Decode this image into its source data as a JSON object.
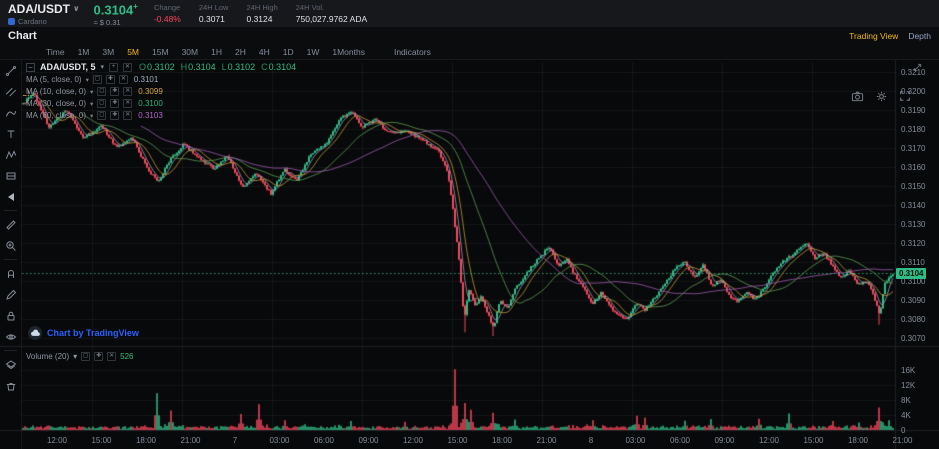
{
  "header": {
    "pair": "ADA/USDT",
    "pair_caret": "∨",
    "network": "Cardano",
    "price": "0.3104",
    "price_suffix": "+",
    "price_usd": "≈ $ 0.31",
    "stats": [
      {
        "label": "Change",
        "value": "-0.48%",
        "color": "#f5475d"
      },
      {
        "label": "24H Low",
        "value": "0.3071",
        "color": "#dfe2e8"
      },
      {
        "label": "24H High",
        "value": "0.3124",
        "color": "#dfe2e8"
      },
      {
        "label": "24H Vol.",
        "value": "750,027.9762 ADA",
        "color": "#dfe2e8"
      }
    ]
  },
  "chart_header": {
    "title": "Chart",
    "tabs": [
      {
        "label": "Trading View",
        "active": true
      },
      {
        "label": "Depth",
        "active": false
      }
    ]
  },
  "toolbar": {
    "crosshair_icon": "crosshair-icon",
    "intervals": [
      {
        "label": "Time"
      },
      {
        "label": "1M"
      },
      {
        "label": "3M"
      },
      {
        "label": "5M",
        "active": true
      },
      {
        "label": "15M"
      },
      {
        "label": "30M"
      },
      {
        "label": "1H"
      },
      {
        "label": "2H"
      },
      {
        "label": "4H"
      },
      {
        "label": "1D"
      },
      {
        "label": "1W"
      },
      {
        "label": "1Months"
      },
      {
        "label": "Indicators",
        "indicators": true
      }
    ],
    "action_icons": [
      "camera-icon",
      "settings-gear-icon",
      "fullscreen-icon"
    ]
  },
  "sidebar": {
    "tools": [
      "trend-line",
      "parallel-channel",
      "curve",
      "text-tool",
      "xabcd-pattern",
      "long-position",
      "collapse-arrow",
      "|",
      "ruler",
      "zoom-in",
      "|",
      "magnet",
      "brush",
      "lock",
      "eye",
      "|",
      "object-tree",
      "remove-drawings"
    ]
  },
  "legend": {
    "symbol": "ADA/USDT, 5",
    "caret": "▾",
    "icon_boxes": [
      "legend-add-icon",
      "legend-compare-icon"
    ],
    "ohlc": [
      {
        "k": "O",
        "v": "0.3102"
      },
      {
        "k": "H",
        "v": "0.3104"
      },
      {
        "k": "L",
        "v": "0.3102"
      },
      {
        "k": "C",
        "v": "0.3104"
      }
    ],
    "ohlc_color": "#2ebd85"
  },
  "indicators_legend": [
    {
      "label": "MA (5, close, 0)",
      "value": "0.3101",
      "color": "#9fb0c6",
      "line": "#93a0b4"
    },
    {
      "label": "MA (10, close, 0)",
      "value": "0.3099",
      "color": "#d4ab45",
      "line": "#bf9a3c"
    },
    {
      "label": "MA (30, close, 0)",
      "value": "0.3100",
      "color": "#33b577",
      "line": "#5c9a55"
    },
    {
      "label": "MA (60, close, 0)",
      "value": "0.3103",
      "color": "#b565cc",
      "line": "#9c59ae"
    }
  ],
  "volume_legend": {
    "label": "Volume (20)",
    "caret": "▾",
    "value": "526",
    "color": "#2ebd85"
  },
  "attribution": {
    "text": "Chart by TradingView"
  },
  "chart_data": {
    "type": "candlestick_with_volume",
    "symbol": "ADA/USDT",
    "interval": "5m",
    "ohlc_legend": {
      "open": 0.3102,
      "high": 0.3104,
      "low": 0.3102,
      "close": 0.3104
    },
    "last_price": 0.3104,
    "last_price_label": "0.3104",
    "day_low": 0.3071,
    "day_high": 0.3124,
    "price_axis_ticks": [
      "0.3210",
      "0.3200",
      "0.3190",
      "0.3180",
      "0.3170",
      "0.3160",
      "0.3150",
      "0.3140",
      "0.3130",
      "0.3120",
      "0.3110",
      "0.3100",
      "0.3090",
      "0.3080",
      "0.3070"
    ],
    "volume_axis_ticks": [
      "16K",
      "12K",
      "8K",
      "4K",
      "0"
    ],
    "time_axis_labels": [
      "12:00",
      "15:00",
      "18:00",
      "21:00",
      "7",
      "03:00",
      "06:00",
      "09:00",
      "12:00",
      "15:00",
      "18:00",
      "21:00",
      "8",
      "03:00",
      "06:00",
      "09:00",
      "12:00",
      "15:00",
      "18:00",
      "21:00"
    ],
    "grid": true,
    "colors": {
      "up": "#2ebd85",
      "down": "#f5475d"
    },
    "moving_average_periods": [
      5,
      10,
      30,
      60
    ],
    "price_keypoints": [
      [
        0.0,
        0.3193
      ],
      [
        0.012,
        0.3199
      ],
      [
        0.03,
        0.3181
      ],
      [
        0.05,
        0.319
      ],
      [
        0.07,
        0.3175
      ],
      [
        0.09,
        0.3182
      ],
      [
        0.108,
        0.317
      ],
      [
        0.125,
        0.3176
      ],
      [
        0.143,
        0.3159
      ],
      [
        0.155,
        0.3152
      ],
      [
        0.168,
        0.3163
      ],
      [
        0.185,
        0.3172
      ],
      [
        0.2,
        0.3165
      ],
      [
        0.22,
        0.3159
      ],
      [
        0.235,
        0.3166
      ],
      [
        0.252,
        0.3149
      ],
      [
        0.268,
        0.3157
      ],
      [
        0.285,
        0.3146
      ],
      [
        0.3,
        0.3159
      ],
      [
        0.315,
        0.3153
      ],
      [
        0.33,
        0.3166
      ],
      [
        0.35,
        0.3173
      ],
      [
        0.365,
        0.3186
      ],
      [
        0.378,
        0.3189
      ],
      [
        0.39,
        0.3181
      ],
      [
        0.405,
        0.3185
      ],
      [
        0.42,
        0.3178
      ],
      [
        0.44,
        0.3179
      ],
      [
        0.46,
        0.3174
      ],
      [
        0.478,
        0.3168
      ],
      [
        0.488,
        0.3158
      ],
      [
        0.495,
        0.3135
      ],
      [
        0.502,
        0.3108
      ],
      [
        0.507,
        0.308
      ],
      [
        0.513,
        0.3096
      ],
      [
        0.52,
        0.3086
      ],
      [
        0.527,
        0.3092
      ],
      [
        0.535,
        0.3082
      ],
      [
        0.541,
        0.3075
      ],
      [
        0.548,
        0.309
      ],
      [
        0.557,
        0.3085
      ],
      [
        0.565,
        0.3096
      ],
      [
        0.575,
        0.3101
      ],
      [
        0.585,
        0.3108
      ],
      [
        0.595,
        0.3113
      ],
      [
        0.605,
        0.3118
      ],
      [
        0.615,
        0.3108
      ],
      [
        0.625,
        0.3112
      ],
      [
        0.633,
        0.3104
      ],
      [
        0.645,
        0.3096
      ],
      [
        0.655,
        0.3088
      ],
      [
        0.665,
        0.3094
      ],
      [
        0.675,
        0.3086
      ],
      [
        0.685,
        0.3082
      ],
      [
        0.695,
        0.308
      ],
      [
        0.705,
        0.3088
      ],
      [
        0.715,
        0.3085
      ],
      [
        0.728,
        0.3092
      ],
      [
        0.74,
        0.31
      ],
      [
        0.75,
        0.3107
      ],
      [
        0.76,
        0.311
      ],
      [
        0.772,
        0.3102
      ],
      [
        0.782,
        0.3109
      ],
      [
        0.792,
        0.3097
      ],
      [
        0.802,
        0.3101
      ],
      [
        0.812,
        0.3092
      ],
      [
        0.822,
        0.3089
      ],
      [
        0.832,
        0.3094
      ],
      [
        0.842,
        0.309
      ],
      [
        0.852,
        0.3096
      ],
      [
        0.862,
        0.3104
      ],
      [
        0.872,
        0.311
      ],
      [
        0.882,
        0.3113
      ],
      [
        0.892,
        0.3117
      ],
      [
        0.9,
        0.312
      ],
      [
        0.91,
        0.3112
      ],
      [
        0.92,
        0.3115
      ],
      [
        0.93,
        0.3108
      ],
      [
        0.94,
        0.3102
      ],
      [
        0.95,
        0.3105
      ],
      [
        0.96,
        0.3098
      ],
      [
        0.97,
        0.31
      ],
      [
        0.978,
        0.3092
      ],
      [
        0.985,
        0.3082
      ],
      [
        0.99,
        0.3098
      ],
      [
        0.995,
        0.3101
      ],
      [
        1.0,
        0.3104
      ]
    ],
    "wick_lows": [
      [
        0.507,
        0.3073
      ],
      [
        0.541,
        0.3071
      ],
      [
        0.985,
        0.3077
      ]
    ],
    "volume_spikes": [
      [
        0.155,
        9800,
        "up"
      ],
      [
        0.17,
        5200,
        "down"
      ],
      [
        0.25,
        4300,
        "down"
      ],
      [
        0.272,
        6900,
        "down"
      ],
      [
        0.3,
        2600,
        "down"
      ],
      [
        0.378,
        2400,
        "up"
      ],
      [
        0.44,
        2200,
        "down"
      ],
      [
        0.496,
        16200,
        "down"
      ],
      [
        0.507,
        7200,
        "down"
      ],
      [
        0.515,
        5400,
        "down"
      ],
      [
        0.541,
        4600,
        "down"
      ],
      [
        0.565,
        2800,
        "up"
      ],
      [
        0.655,
        2600,
        "down"
      ],
      [
        0.705,
        3800,
        "down"
      ],
      [
        0.715,
        3300,
        "down"
      ],
      [
        0.76,
        2500,
        "up"
      ],
      [
        0.79,
        2900,
        "up"
      ],
      [
        0.845,
        3000,
        "down"
      ],
      [
        0.88,
        4400,
        "up"
      ],
      [
        0.93,
        2400,
        "down"
      ],
      [
        0.96,
        2000,
        "up"
      ],
      [
        0.985,
        6000,
        "down"
      ],
      [
        0.995,
        2600,
        "up"
      ]
    ]
  }
}
